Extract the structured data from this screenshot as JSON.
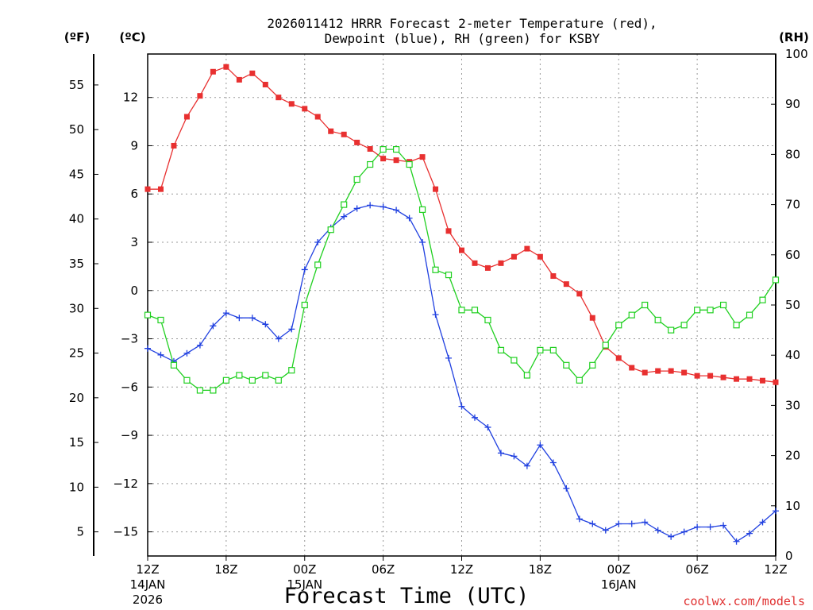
{
  "title": {
    "line1": "2026011412 HRRR Forecast 2-meter Temperature (red),",
    "line2": "Dewpoint (blue), RH (green) for KSBY"
  },
  "units": {
    "fahrenheit": "(ºF)",
    "celsius": "(ºC)",
    "rh": "(RH)"
  },
  "xlabel": "Forecast Time (UTC)",
  "credit": "coolwx.com/models",
  "colors": {
    "temperature": "#e83030",
    "dewpoint": "#2040e0",
    "rh": "#20d020",
    "credit": "#e03030"
  },
  "chart_data": {
    "type": "line",
    "x_hours": [
      0,
      1,
      2,
      3,
      4,
      5,
      6,
      7,
      8,
      9,
      10,
      11,
      12,
      13,
      14,
      15,
      16,
      17,
      18,
      19,
      20,
      21,
      22,
      23,
      24,
      25,
      26,
      27,
      28,
      29,
      30,
      31,
      32,
      33,
      34,
      35,
      36,
      37,
      38,
      39,
      40,
      41,
      42,
      43,
      44,
      45,
      46,
      47,
      48
    ],
    "x_ticks": [
      {
        "hour": 0,
        "label": "12Z",
        "sub1": "14JAN",
        "sub2": "2026"
      },
      {
        "hour": 6,
        "label": "18Z",
        "sub1": "",
        "sub2": ""
      },
      {
        "hour": 12,
        "label": "00Z",
        "sub1": "15JAN",
        "sub2": ""
      },
      {
        "hour": 18,
        "label": "06Z",
        "sub1": "",
        "sub2": ""
      },
      {
        "hour": 24,
        "label": "12Z",
        "sub1": "",
        "sub2": ""
      },
      {
        "hour": 30,
        "label": "18Z",
        "sub1": "",
        "sub2": ""
      },
      {
        "hour": 36,
        "label": "00Z",
        "sub1": "16JAN",
        "sub2": ""
      },
      {
        "hour": 42,
        "label": "06Z",
        "sub1": "",
        "sub2": ""
      },
      {
        "hour": 48,
        "label": "12Z",
        "sub1": "",
        "sub2": ""
      }
    ],
    "celsius_axis": {
      "range": [
        -16.5,
        14.7
      ],
      "ticks": [
        12,
        9,
        6,
        3,
        0,
        -3,
        -6,
        -9,
        -12,
        -15
      ],
      "tick_labels": [
        "12",
        "9",
        "6",
        "3",
        "0",
        "−3",
        "−6",
        "−9",
        "−12",
        "−15"
      ]
    },
    "fahrenheit_axis": {
      "ticks": [
        55,
        50,
        45,
        40,
        35,
        30,
        25,
        20,
        15,
        10,
        5
      ],
      "tick_labels": [
        "55",
        "50",
        "45",
        "40",
        "35",
        "30",
        "25",
        "20",
        "15",
        "10",
        "5"
      ]
    },
    "rh_axis": {
      "range": [
        0,
        100
      ],
      "ticks": [
        100,
        90,
        80,
        70,
        60,
        50,
        40,
        30,
        20,
        10,
        0
      ],
      "tick_labels": [
        "100",
        "90",
        "80",
        "70",
        "60",
        "50",
        "40",
        "30",
        "20",
        "10",
        "0"
      ]
    },
    "grid": true,
    "series": [
      {
        "key": "temperature",
        "axis": "celsius",
        "marker": "filled-square",
        "values": [
          6.3,
          6.3,
          9.0,
          10.8,
          12.1,
          13.6,
          13.9,
          13.1,
          13.5,
          12.8,
          12.0,
          11.6,
          11.3,
          10.8,
          9.9,
          9.7,
          9.2,
          8.8,
          8.2,
          8.1,
          8.0,
          8.3,
          6.3,
          3.7,
          2.5,
          1.7,
          1.4,
          1.7,
          2.1,
          2.6,
          2.1,
          0.9,
          0.4,
          -0.2,
          -1.7,
          -3.5,
          -4.2,
          -4.8,
          -5.1,
          -5.0,
          -5.0,
          -5.1,
          -5.3,
          -5.3,
          -5.4,
          -5.5,
          -5.5,
          -5.6,
          -5.7
        ]
      },
      {
        "key": "dewpoint",
        "axis": "celsius",
        "marker": "plus",
        "values": [
          -3.6,
          -4.0,
          -4.4,
          -3.9,
          -3.4,
          -2.2,
          -1.4,
          -1.7,
          -1.7,
          -2.1,
          -3.0,
          -2.4,
          1.3,
          3.0,
          3.9,
          4.6,
          5.1,
          5.3,
          5.2,
          5.0,
          4.5,
          3.0,
          -1.5,
          -4.2,
          -7.2,
          -7.9,
          -8.5,
          -10.1,
          -10.3,
          -10.9,
          -9.6,
          -10.7,
          -12.3,
          -14.2,
          -14.5,
          -14.9,
          -14.5,
          -14.5,
          -14.4,
          -14.9,
          -15.3,
          -15.0,
          -14.7,
          -14.7,
          -14.6,
          -15.6,
          -15.1,
          -14.4,
          -13.7
        ]
      },
      {
        "key": "rh",
        "axis": "rh",
        "marker": "open-square",
        "values": [
          48,
          47,
          38,
          35,
          33,
          33,
          35,
          36,
          35,
          36,
          35,
          37,
          50,
          58,
          65,
          70,
          75,
          78,
          81,
          81,
          78,
          69,
          57,
          56,
          49,
          49,
          47,
          41,
          39,
          36,
          41,
          41,
          38,
          35,
          38,
          42,
          46,
          48,
          50,
          47,
          45,
          46,
          49,
          49,
          50,
          46,
          48,
          51,
          55
        ]
      }
    ]
  }
}
